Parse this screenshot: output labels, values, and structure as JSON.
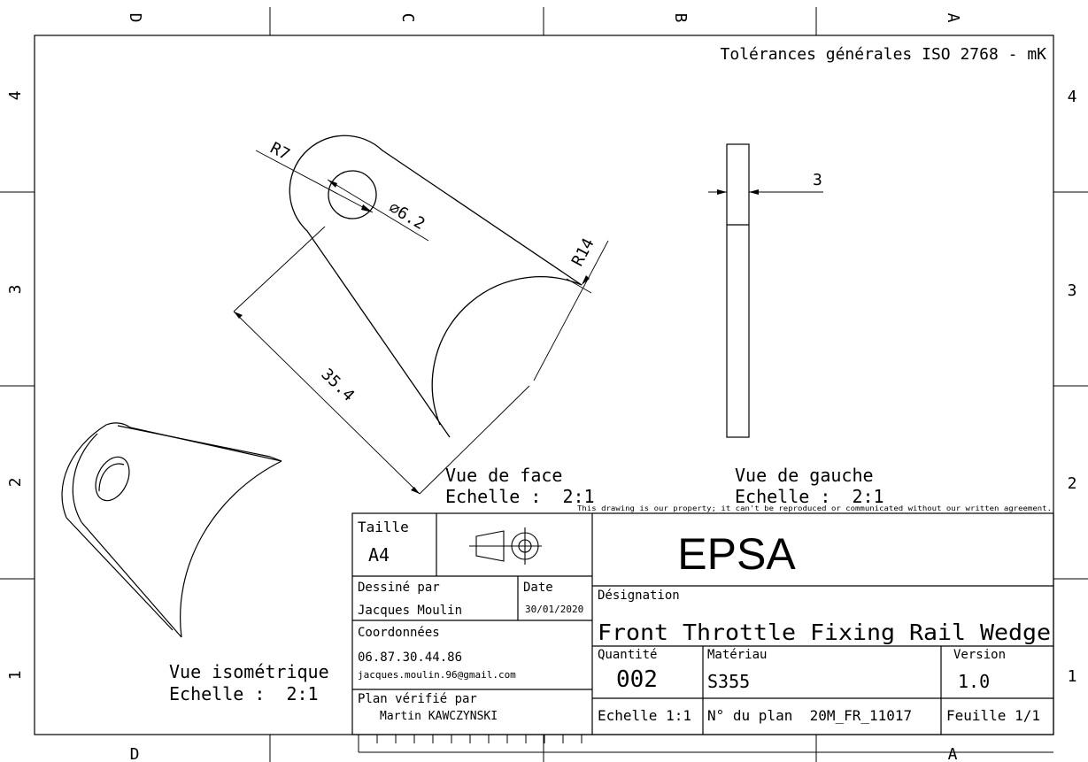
{
  "border": {
    "columns": [
      "D",
      "C",
      "B",
      "A"
    ],
    "rows": [
      "4",
      "3",
      "2",
      "1"
    ]
  },
  "general_tolerances": "Tolérances générales ISO 2768 - mK",
  "dimensions": {
    "r7": "R7",
    "hole_diameter": "∅6.2",
    "r14": "R14",
    "length": "35.4",
    "thickness": "3"
  },
  "views": {
    "front": {
      "title": "Vue de face",
      "scale": "Echelle :  2:1"
    },
    "left": {
      "title": "Vue de gauche",
      "scale": "Echelle :  2:1"
    },
    "isometric": {
      "title": "Vue isométrique",
      "scale": "Echelle :  2:1"
    }
  },
  "title_block": {
    "property_notice": "This drawing is our property; it can't be reproduced or communicated without our written agreement.",
    "size_label": "Taille",
    "size_value": "A4",
    "company": "EPSA",
    "drawn_by_label": "Dessiné par",
    "drawn_by": "Jacques Moulin",
    "date_label": "Date",
    "date": "30/01/2020",
    "contact_label": "Coordonnées",
    "phone": "06.87.30.44.86",
    "email": "jacques.moulin.96@gmail.com",
    "checked_by_label": "Plan vérifié par",
    "checked_by": "Martin KAWCZYNSKI",
    "designation_label": "Désignation",
    "designation": "Front Throttle Fixing Rail Wedge",
    "quantity_label": "Quantité",
    "quantity": "002",
    "material_label": "Matériau",
    "material": "S355",
    "version_label": "Version",
    "version": "1.0",
    "scale": "Echelle 1:1",
    "drawing_number": "N° du plan  20M_FR_11017",
    "sheet": "Feuille 1/1"
  }
}
